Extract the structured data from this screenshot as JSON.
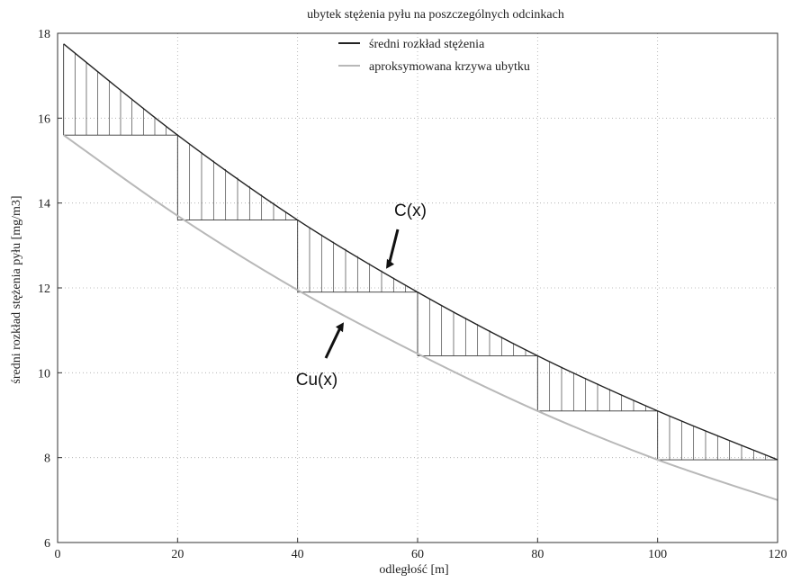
{
  "chart_data": {
    "type": "line",
    "title": "ubytek stężenia pyłu na poszczególnych odcinkach",
    "xlabel": "odległość [m]",
    "ylabel": "średni rozkład stężenia pyłu [mg/m3]",
    "xlim": [
      0,
      120
    ],
    "ylim": [
      6,
      18
    ],
    "x_ticks": [
      0,
      20,
      40,
      60,
      80,
      100,
      120
    ],
    "y_ticks": [
      6,
      8,
      10,
      12,
      14,
      16,
      18
    ],
    "grid": true,
    "legend_position": "top-center",
    "series": [
      {
        "name": "średni rozkład stężenia",
        "color": "#222222",
        "x": [
          1,
          20,
          40,
          60,
          80,
          100,
          120
        ],
        "y": [
          17.75,
          15.6,
          13.6,
          11.9,
          10.4,
          9.1,
          7.95
        ]
      },
      {
        "name": "aproksymowana krzywa ubytku",
        "color": "#b8b8b8",
        "x": [
          1,
          20,
          40,
          60,
          80,
          100,
          120
        ],
        "y": [
          15.6,
          13.7,
          11.95,
          10.45,
          9.1,
          7.95,
          7.0
        ]
      }
    ],
    "segments": [
      {
        "x0": 1,
        "x1": 20
      },
      {
        "x0": 20,
        "x1": 40
      },
      {
        "x0": 40,
        "x1": 60
      },
      {
        "x0": 60,
        "x1": 80
      },
      {
        "x0": 80,
        "x1": 100
      },
      {
        "x0": 100,
        "x1": 120
      }
    ],
    "annotations": [
      {
        "text": "C(x)",
        "x": 54,
        "y": 12.6
      },
      {
        "text": "Cu(x)",
        "x": 48,
        "y": 11.4
      }
    ]
  }
}
